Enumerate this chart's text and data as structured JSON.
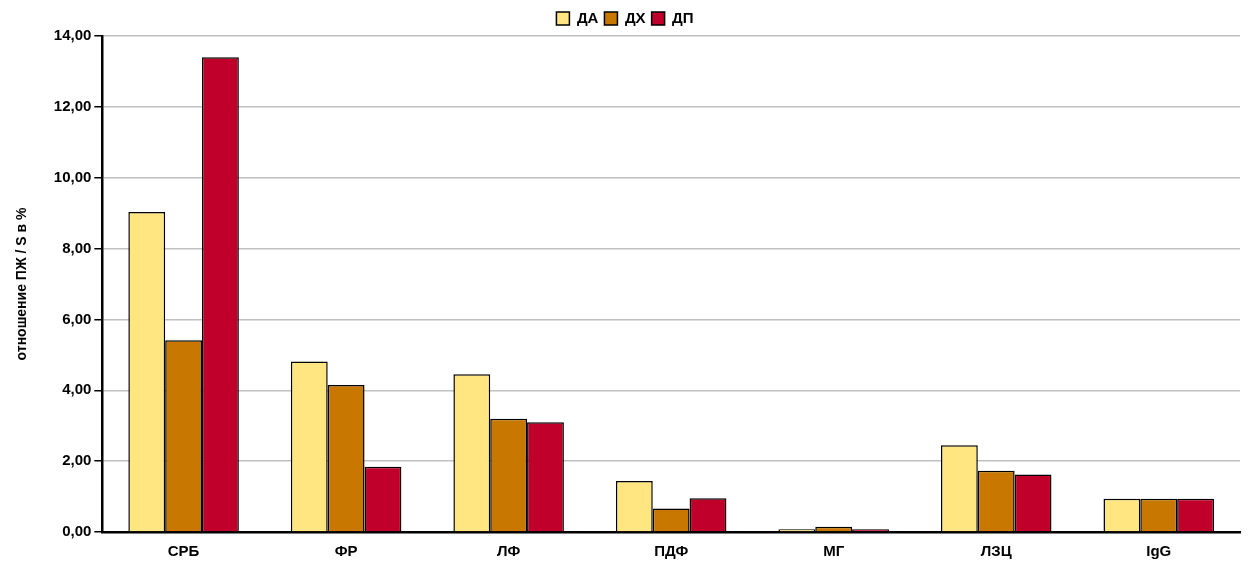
{
  "chart_data": {
    "type": "bar",
    "ylabel": "отношение ПЖ / S в %",
    "categories": [
      "СРБ",
      "ФР",
      "ЛФ",
      "ПДФ",
      "МГ",
      "ЛЗЦ",
      "IgG"
    ],
    "series": [
      {
        "name": "ДА",
        "color": "#ffe680",
        "values": [
          9.03,
          4.81,
          4.45,
          1.44,
          0.08,
          2.45,
          0.94
        ]
      },
      {
        "name": "ДХ",
        "color": "#c87800",
        "values": [
          5.41,
          4.15,
          3.2,
          0.66,
          0.15,
          1.73,
          0.94
        ]
      },
      {
        "name": "ДП",
        "color": "#c0002a",
        "values": [
          13.4,
          1.84,
          3.1,
          0.95,
          0.08,
          1.62,
          0.94
        ]
      }
    ],
    "ylim": [
      0,
      14
    ],
    "yticks": [
      {
        "value": 0,
        "label": "0,00"
      },
      {
        "value": 2,
        "label": "2,00"
      },
      {
        "value": 4,
        "label": "4,00"
      },
      {
        "value": 6,
        "label": "6,00"
      },
      {
        "value": 8,
        "label": "8,00"
      },
      {
        "value": 10,
        "label": "10,00"
      },
      {
        "value": 12,
        "label": "12,00"
      },
      {
        "value": 14,
        "label": "14,00"
      }
    ],
    "grid": "y",
    "legend": "top"
  }
}
